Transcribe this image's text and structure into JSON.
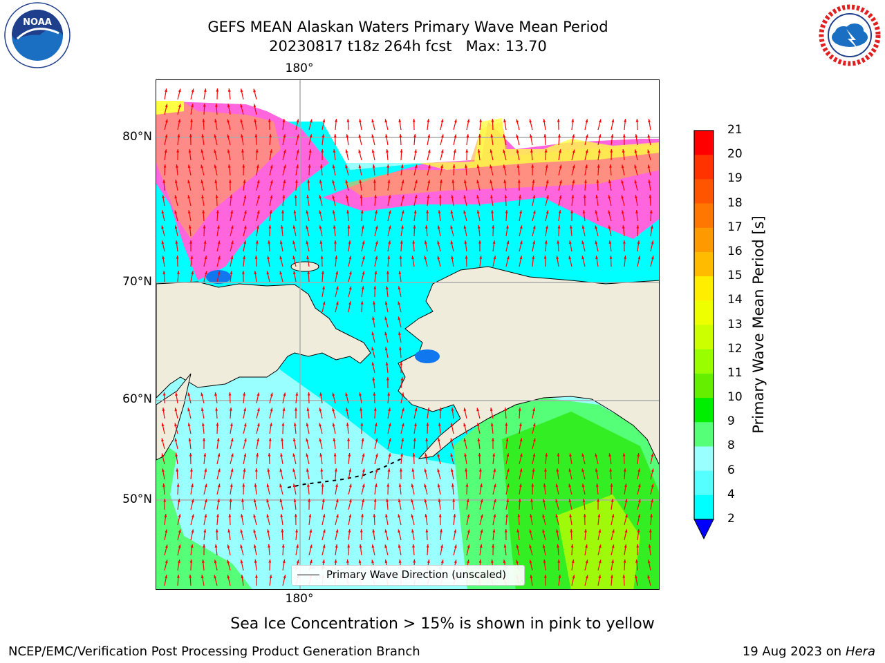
{
  "title": {
    "line1": "GEFS MEAN Alaskan Waters Primary Wave Mean Period",
    "line2": "20230817 t18z 264h fcst   Max: 13.70"
  },
  "logos": {
    "noaa_text": "NOAA",
    "noaa_ring": "NATIONAL OCEANIC AND ATMOSPHERIC ADMINISTRATION · U.S. DEPARTMENT OF COMMERCE",
    "nws_text": "NATIONAL WEATHER SERVICE"
  },
  "axes": {
    "lon_top": "180°",
    "lon_bottom": "180°",
    "lat_labels": [
      "80°N",
      "70°N",
      "60°N",
      "50°N"
    ]
  },
  "legend": {
    "label": "Primary Wave Direction (unscaled)",
    "line_color": "#000000"
  },
  "colorbar": {
    "label": "Primary Wave Mean Period [s]",
    "ticks": [
      "21",
      "20",
      "19",
      "18",
      "17",
      "16",
      "15",
      "14",
      "13",
      "12",
      "11",
      "10",
      "9",
      "8",
      "6",
      "4",
      "2"
    ],
    "colors": [
      "#ff0000",
      "#ff3300",
      "#ff5500",
      "#ff7700",
      "#ff9900",
      "#ffbb00",
      "#ffee00",
      "#eeff00",
      "#ccff00",
      "#99ff00",
      "#66ee00",
      "#00ee00",
      "#55ff77",
      "#99ffff",
      "#55ffff",
      "#00ffff",
      "#0088ff"
    ],
    "extend_color": "#0000ff"
  },
  "map_colors": {
    "land": "#efecdc",
    "ice_pink": "#ff66dd",
    "ice_orange": "#ffaa44",
    "ice_yellow": "#ffff44",
    "water_cyan": "#00ffff",
    "water_light": "#99ffff",
    "water_green": "#55ff77",
    "water_bright_green": "#33ee22",
    "water_yellowgreen": "#ccff00",
    "arrow": "#ff0000",
    "grid": "#aaaaaa"
  },
  "footnote": "Sea Ice Concentration > 15% is shown in pink to yellow",
  "footer": {
    "left": "NCEP/EMC/Verification Post Processing Product Generation Branch",
    "right_date": "19 Aug 2023 on",
    "right_host": "Hera"
  }
}
